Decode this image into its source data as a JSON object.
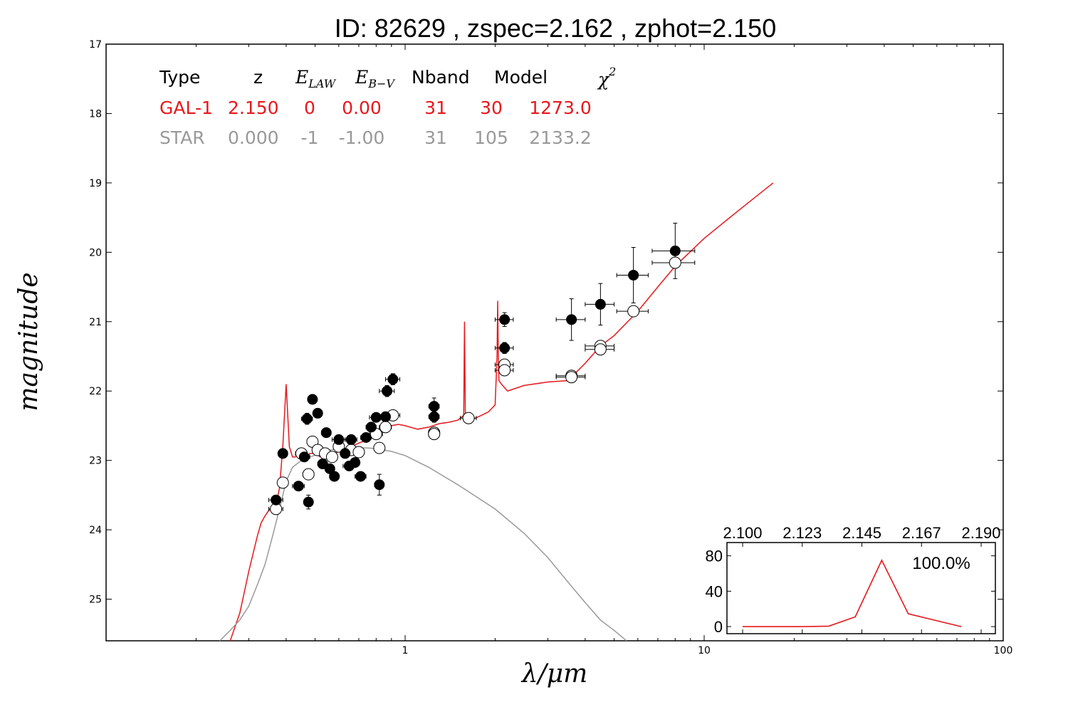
{
  "chart_data": {
    "type": "scatter",
    "title": "ID:  82629 , zspec=2.162 , zphot=2.150",
    "xlabel": "λ/μm",
    "ylabel": "magnitude",
    "xscale": "log",
    "xlim": [
      0.1,
      100
    ],
    "ylim": [
      25.6,
      17
    ],
    "x_ticks": [
      "1",
      "10",
      "100"
    ],
    "y_ticks": [
      "17",
      "18",
      "19",
      "20",
      "21",
      "22",
      "23",
      "24",
      "25"
    ],
    "fit_table": {
      "headers": [
        "Type",
        "z",
        "E_LAW",
        "E_B−V",
        "Nband",
        "Model",
        "χ2"
      ],
      "rows": [
        {
          "name": "GAL-1",
          "color": "#e8181c",
          "values": [
            "GAL-1",
            "2.150",
            "0",
            "0.00",
            "31",
            "30",
            "1273.0"
          ]
        },
        {
          "name": "STAR",
          "color": "#999999",
          "values": [
            "STAR",
            "0.000",
            "-1",
            "-1.00",
            "31",
            "105",
            "2133.2"
          ]
        }
      ]
    },
    "series": [
      {
        "name": "GAL-1",
        "kind": "model-line",
        "color": "#e8181c",
        "x": [
          0.26,
          0.28,
          0.3,
          0.32,
          0.33,
          0.34,
          0.35,
          0.36,
          0.37,
          0.38,
          0.385,
          0.39,
          0.4,
          0.41,
          0.42,
          0.43,
          0.44,
          0.45,
          0.46,
          0.47,
          0.48,
          0.5,
          0.52,
          0.55,
          0.58,
          0.62,
          0.66,
          0.7,
          0.75,
          0.8,
          0.85,
          0.9,
          0.95,
          1.0,
          1.1,
          1.2,
          1.3,
          1.4,
          1.5,
          1.57,
          1.58,
          1.59,
          1.62,
          1.7,
          1.8,
          1.9,
          2.0,
          2.03,
          2.04,
          2.05,
          2.06,
          2.1,
          2.2,
          2.5,
          3.0,
          3.5,
          4.0,
          4.5,
          5.0,
          6.0,
          7.0,
          8.0,
          10.0,
          13.0,
          17.0
        ],
        "y": [
          25.6,
          25.2,
          24.6,
          24.1,
          23.9,
          23.8,
          23.72,
          23.7,
          23.65,
          23.4,
          23.1,
          22.8,
          21.9,
          22.8,
          22.95,
          22.95,
          22.9,
          23.0,
          22.95,
          22.95,
          22.9,
          22.9,
          22.95,
          22.95,
          22.9,
          22.85,
          22.8,
          22.75,
          22.7,
          22.65,
          22.55,
          22.5,
          22.48,
          22.5,
          22.55,
          22.52,
          22.47,
          22.45,
          22.42,
          22.35,
          21.0,
          22.4,
          22.42,
          22.4,
          22.35,
          22.3,
          22.2,
          21.5,
          20.7,
          21.5,
          21.85,
          21.9,
          22.0,
          21.92,
          21.87,
          21.85,
          21.6,
          21.35,
          21.2,
          20.85,
          20.5,
          20.2,
          19.8,
          19.4,
          19.0
        ]
      },
      {
        "name": "STAR",
        "kind": "model-line",
        "color": "#999999",
        "x": [
          0.24,
          0.26,
          0.28,
          0.3,
          0.32,
          0.34,
          0.36,
          0.38,
          0.4,
          0.42,
          0.45,
          0.48,
          0.52,
          0.56,
          0.6,
          0.65,
          0.7,
          0.75,
          0.8,
          0.9,
          1.0,
          1.2,
          1.5,
          2.0,
          2.5,
          3.0,
          3.5,
          4.0,
          4.5,
          5.0,
          5.5
        ],
        "y": [
          25.6,
          25.45,
          25.3,
          25.1,
          24.8,
          24.5,
          24.1,
          23.7,
          23.3,
          23.1,
          23.0,
          22.95,
          22.9,
          22.85,
          22.83,
          22.82,
          22.82,
          22.82,
          22.83,
          22.87,
          22.93,
          23.1,
          23.35,
          23.7,
          24.05,
          24.4,
          24.75,
          25.05,
          25.3,
          25.45,
          25.6
        ]
      },
      {
        "name": "observed",
        "kind": "points-filled",
        "points": [
          {
            "x": 0.37,
            "y": 23.57,
            "xerr": 0.02,
            "yerr": 0.05
          },
          {
            "x": 0.39,
            "y": 22.9,
            "xerr": 0.01,
            "yerr": 0.03
          },
          {
            "x": 0.44,
            "y": 23.37,
            "xerr": 0.02,
            "yerr": 0.04
          },
          {
            "x": 0.46,
            "y": 22.95,
            "xerr": 0.02,
            "yerr": 0.04
          },
          {
            "x": 0.47,
            "y": 22.4,
            "xerr": 0.02,
            "yerr": 0.08
          },
          {
            "x": 0.475,
            "y": 23.6,
            "xerr": 0.01,
            "yerr": 0.1
          },
          {
            "x": 0.49,
            "y": 22.12,
            "xerr": 0.01,
            "yerr": 0.03
          },
          {
            "x": 0.51,
            "y": 22.32,
            "xerr": 0.01,
            "yerr": 0.03
          },
          {
            "x": 0.53,
            "y": 23.05,
            "xerr": 0.02,
            "yerr": 0.03
          },
          {
            "x": 0.545,
            "y": 22.6,
            "xerr": 0.02,
            "yerr": 0.05
          },
          {
            "x": 0.56,
            "y": 23.12,
            "xerr": 0.02,
            "yerr": 0.03
          },
          {
            "x": 0.58,
            "y": 23.23,
            "xerr": 0.02,
            "yerr": 0.03
          },
          {
            "x": 0.6,
            "y": 22.7,
            "xerr": 0.03,
            "yerr": 0.05
          },
          {
            "x": 0.63,
            "y": 22.9,
            "xerr": 0.02,
            "yerr": 0.03
          },
          {
            "x": 0.65,
            "y": 23.08,
            "xerr": 0.03,
            "yerr": 0.03
          },
          {
            "x": 0.66,
            "y": 22.7,
            "xerr": 0.03,
            "yerr": 0.04
          },
          {
            "x": 0.68,
            "y": 23.03,
            "xerr": 0.02,
            "yerr": 0.03
          },
          {
            "x": 0.71,
            "y": 23.23,
            "xerr": 0.03,
            "yerr": 0.03
          },
          {
            "x": 0.74,
            "y": 22.67,
            "xerr": 0.03,
            "yerr": 0.03
          },
          {
            "x": 0.77,
            "y": 22.52,
            "xerr": 0.03,
            "yerr": 0.03
          },
          {
            "x": 0.8,
            "y": 22.38,
            "xerr": 0.04,
            "yerr": 0.04
          },
          {
            "x": 0.82,
            "y": 23.35,
            "xerr": 0.03,
            "yerr": 0.15
          },
          {
            "x": 0.86,
            "y": 22.37,
            "xerr": 0.04,
            "yerr": 0.04
          },
          {
            "x": 0.87,
            "y": 22.0,
            "xerr": 0.05,
            "yerr": 0.08
          },
          {
            "x": 0.91,
            "y": 21.83,
            "xerr": 0.05,
            "yerr": 0.08
          },
          {
            "x": 1.25,
            "y": 22.22,
            "xerr": 0.05,
            "yerr": 0.12
          },
          {
            "x": 1.25,
            "y": 22.37,
            "xerr": 0.05,
            "yerr": 0.08
          },
          {
            "x": 2.15,
            "y": 20.97,
            "xerr": 0.15,
            "yerr": 0.1
          },
          {
            "x": 2.15,
            "y": 21.38,
            "xerr": 0.15,
            "yerr": 0.08
          },
          {
            "x": 3.6,
            "y": 20.97,
            "xerr": 0.4,
            "yerr": 0.3
          },
          {
            "x": 4.5,
            "y": 20.75,
            "xerr": 0.5,
            "yerr": 0.3
          },
          {
            "x": 5.8,
            "y": 20.33,
            "xerr": 0.7,
            "yerr": 0.4
          },
          {
            "x": 8.0,
            "y": 19.98,
            "xerr": 1.3,
            "yerr": 0.4
          }
        ]
      },
      {
        "name": "model",
        "kind": "points-open",
        "points": [
          {
            "x": 0.37,
            "y": 23.7,
            "xerr": 0.02
          },
          {
            "x": 0.39,
            "y": 23.32,
            "xerr": 0.01
          },
          {
            "x": 0.45,
            "y": 22.9,
            "xerr": 0.02
          },
          {
            "x": 0.475,
            "y": 23.2,
            "xerr": 0.02
          },
          {
            "x": 0.49,
            "y": 22.73,
            "xerr": 0.02
          },
          {
            "x": 0.51,
            "y": 22.85,
            "xerr": 0.02
          },
          {
            "x": 0.54,
            "y": 22.9,
            "xerr": 0.02
          },
          {
            "x": 0.57,
            "y": 22.95,
            "xerr": 0.02
          },
          {
            "x": 0.6,
            "y": 22.8,
            "xerr": 0.02
          },
          {
            "x": 0.66,
            "y": 22.85,
            "xerr": 0.03
          },
          {
            "x": 0.7,
            "y": 22.88,
            "xerr": 0.03
          },
          {
            "x": 0.82,
            "y": 22.82,
            "xerr": 0.03
          },
          {
            "x": 0.8,
            "y": 22.62,
            "xerr": 0.04
          },
          {
            "x": 0.86,
            "y": 22.52,
            "xerr": 0.04
          },
          {
            "x": 0.91,
            "y": 22.35,
            "xerr": 0.05
          },
          {
            "x": 1.25,
            "y": 22.6,
            "xerr": 0.05
          },
          {
            "x": 1.25,
            "y": 22.62,
            "xerr": 0.05
          },
          {
            "x": 1.63,
            "y": 22.39,
            "xerr": 0.1
          },
          {
            "x": 2.15,
            "y": 21.62,
            "xerr": 0.15
          },
          {
            "x": 2.15,
            "y": 21.7,
            "xerr": 0.15
          },
          {
            "x": 3.6,
            "y": 21.78,
            "xerr": 0.4
          },
          {
            "x": 3.6,
            "y": 21.8,
            "xerr": 0.4
          },
          {
            "x": 4.5,
            "y": 21.35,
            "xerr": 0.5
          },
          {
            "x": 4.5,
            "y": 21.4,
            "xerr": 0.5
          },
          {
            "x": 5.8,
            "y": 20.85,
            "xerr": 0.7
          },
          {
            "x": 8.0,
            "y": 20.15,
            "xerr": 1.3
          }
        ]
      }
    ],
    "inset": {
      "type": "line",
      "x_ticks": [
        "2.100",
        "2.123",
        "2.145",
        "2.167",
        "2.190"
      ],
      "y_ticks": [
        "0",
        "40",
        "80"
      ],
      "annotation": "100.0%",
      "ylim": [
        -8,
        95
      ],
      "color": "#e8181c",
      "x": [
        2.1,
        2.1225,
        2.1325,
        2.1425,
        2.1525,
        2.1625,
        2.1825
      ],
      "y": [
        0,
        0,
        0.5,
        11,
        75,
        14.5,
        0
      ]
    }
  }
}
